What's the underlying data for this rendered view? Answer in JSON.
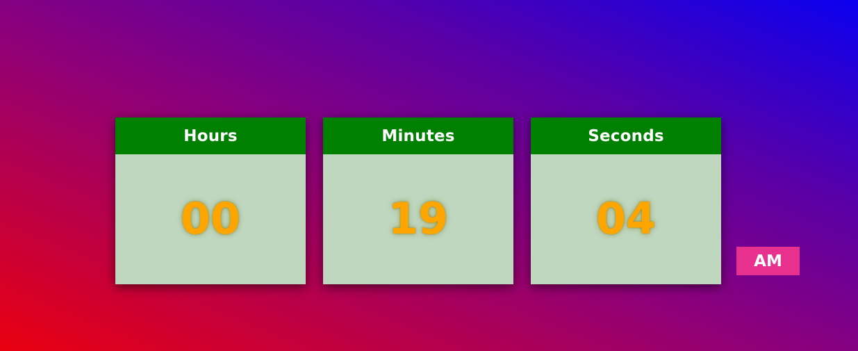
{
  "clock": {
    "hours": {
      "label": "Hours",
      "value": "00"
    },
    "minutes": {
      "label": "Minutes",
      "value": "19"
    },
    "seconds": {
      "label": "Seconds",
      "value": "04"
    },
    "period": "AM"
  },
  "colors": {
    "header_bg": "#008000",
    "card_bg": "#bfd6bf",
    "digit_color": "#ffa500",
    "period_bg": "#e8318f",
    "background_gradient": [
      "#ea0010",
      "#8f0078",
      "#0a00f0"
    ]
  }
}
